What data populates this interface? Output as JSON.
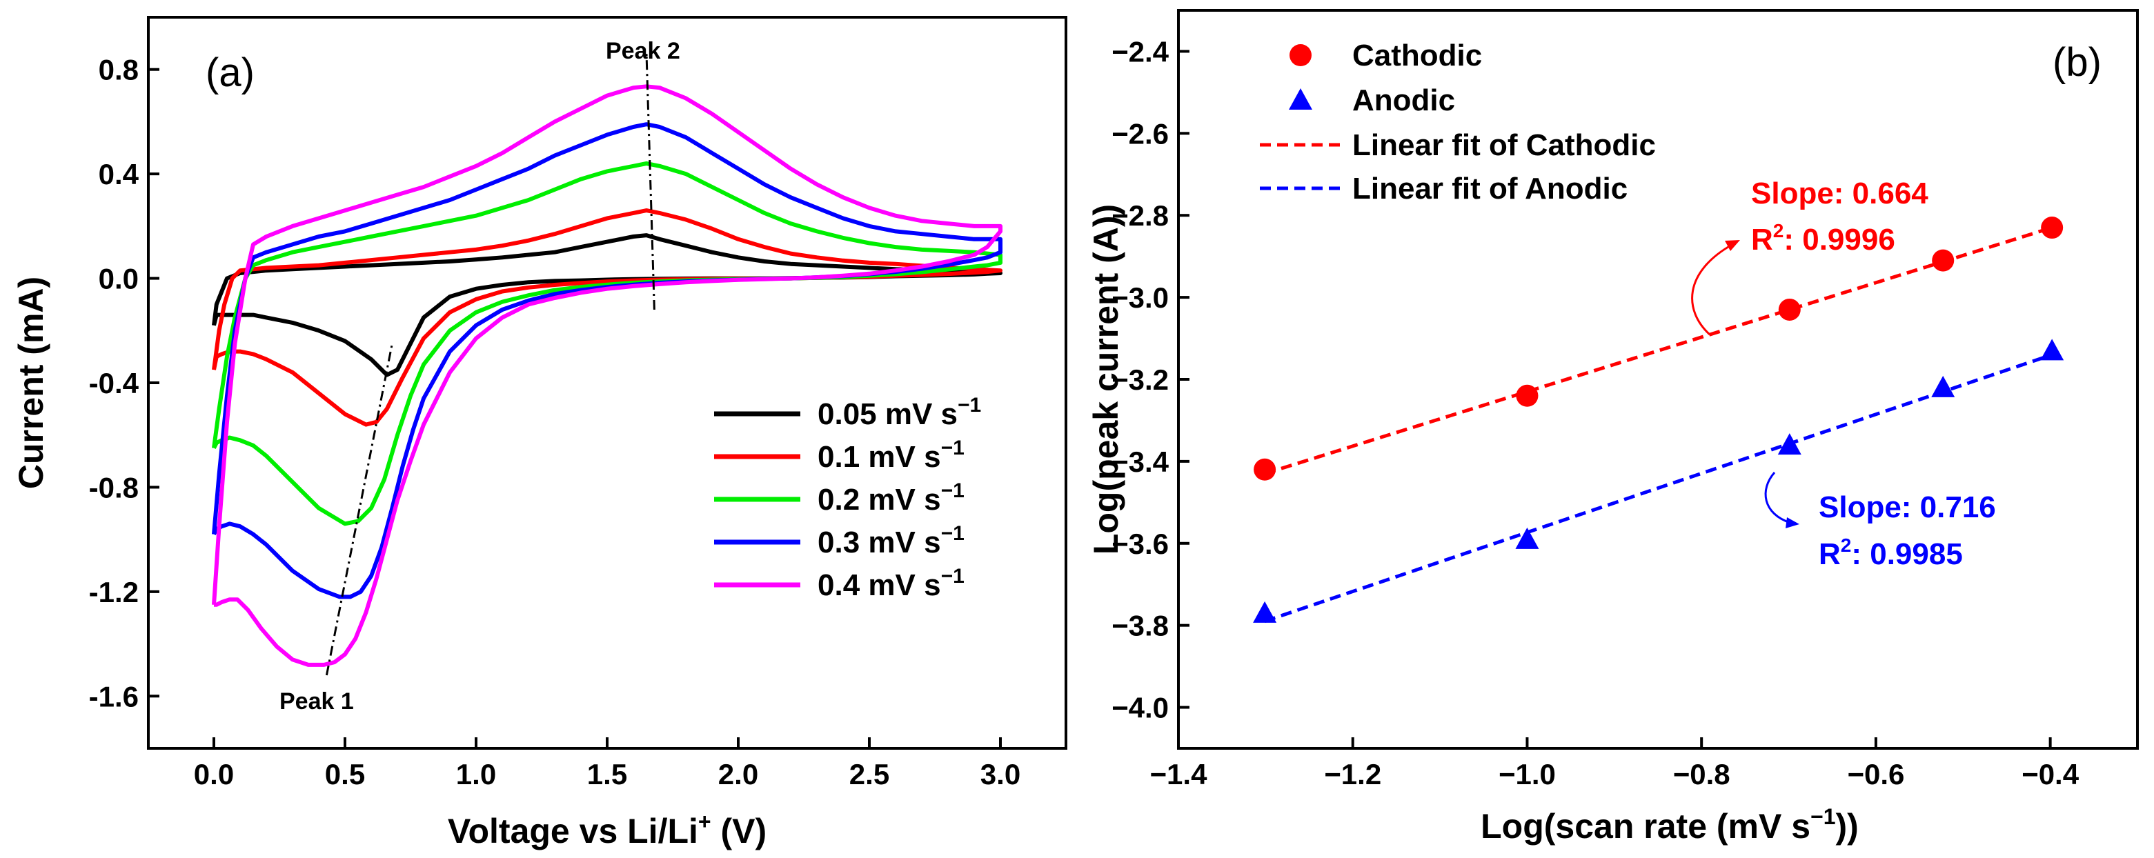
{
  "chart_data": [
    {
      "panel": "(a)",
      "type": "line",
      "xlabel": "Voltage vs Li/Li⁺ (V)",
      "ylabel": "Current (mA)",
      "xlim": [
        -0.25,
        3.25
      ],
      "ylim": [
        -1.8,
        1.0
      ],
      "xticks": [
        0.0,
        0.5,
        1.0,
        1.5,
        2.0,
        2.5,
        3.0
      ],
      "xtick_labels": [
        "0.0",
        "0.5",
        "1.0",
        "1.5",
        "2.0",
        "2.5",
        "3.0"
      ],
      "yticks": [
        -1.6,
        -1.2,
        -0.8,
        -0.4,
        0.0,
        0.4,
        0.8
      ],
      "ytick_labels": [
        "-1.6",
        "-1.2",
        "-0.8",
        "-0.4",
        "0.0",
        "0.4",
        "0.8"
      ],
      "annotations": {
        "peak1": "Peak 1",
        "peak2": "Peak 2"
      },
      "peak_lines": {
        "peak1": [
          [
            0.43,
            -1.52
          ],
          [
            0.68,
            -0.25
          ]
        ],
        "peak2": [
          [
            1.68,
            -0.12
          ],
          [
            1.65,
            0.86
          ]
        ]
      },
      "series": [
        {
          "name": "0.05 mV s⁻¹",
          "legend": "0.05 mV s",
          "color": "#000000",
          "x": [
            0.0,
            0.01,
            0.03,
            0.06,
            0.1,
            0.15,
            0.2,
            0.3,
            0.4,
            0.5,
            0.6,
            0.66,
            0.7,
            0.75,
            0.8,
            0.9,
            1.0,
            1.1,
            1.2,
            1.3,
            1.4,
            1.5,
            1.6,
            1.7,
            1.8,
            1.9,
            2.0,
            2.1,
            2.2,
            2.3,
            2.4,
            2.5,
            2.6,
            2.7,
            2.8,
            2.9,
            2.95,
            3.0,
            3.0,
            2.9,
            2.8,
            2.7,
            2.6,
            2.5,
            2.4,
            2.3,
            2.2,
            2.1,
            2.0,
            1.9,
            1.8,
            1.7,
            1.65,
            1.6,
            1.5,
            1.4,
            1.3,
            1.2,
            1.1,
            1.0,
            0.9,
            0.8,
            0.7,
            0.6,
            0.5,
            0.4,
            0.3,
            0.2,
            0.15,
            0.1,
            0.05,
            0.03,
            0.01,
            0.0
          ],
          "y": [
            -0.18,
            -0.14,
            -0.14,
            -0.14,
            -0.14,
            -0.14,
            -0.15,
            -0.17,
            -0.2,
            -0.24,
            -0.31,
            -0.37,
            -0.35,
            -0.25,
            -0.15,
            -0.07,
            -0.04,
            -0.025,
            -0.015,
            -0.01,
            -0.008,
            -0.005,
            -0.003,
            -0.002,
            -0.001,
            0.0,
            0.0,
            0.0,
            0.001,
            0.002,
            0.003,
            0.005,
            0.008,
            0.01,
            0.012,
            0.015,
            0.018,
            0.02,
            0.02,
            0.025,
            0.03,
            0.033,
            0.035,
            0.04,
            0.045,
            0.05,
            0.055,
            0.065,
            0.08,
            0.1,
            0.125,
            0.15,
            0.165,
            0.16,
            0.14,
            0.12,
            0.1,
            0.09,
            0.08,
            0.072,
            0.065,
            0.06,
            0.055,
            0.05,
            0.045,
            0.04,
            0.035,
            0.03,
            0.025,
            0.02,
            0.0,
            -0.05,
            -0.1,
            -0.18
          ]
        },
        {
          "name": "0.1 mV s⁻¹",
          "legend": "0.1 mV s",
          "color": "#ff0000",
          "x": [
            0.0,
            0.01,
            0.03,
            0.06,
            0.1,
            0.15,
            0.2,
            0.3,
            0.4,
            0.5,
            0.58,
            0.62,
            0.66,
            0.72,
            0.8,
            0.9,
            1.0,
            1.1,
            1.2,
            1.3,
            1.4,
            1.5,
            1.6,
            1.7,
            1.8,
            1.9,
            2.0,
            2.1,
            2.2,
            2.3,
            2.4,
            2.5,
            2.6,
            2.7,
            2.8,
            2.9,
            2.95,
            3.0,
            3.0,
            2.9,
            2.8,
            2.7,
            2.6,
            2.5,
            2.4,
            2.3,
            2.2,
            2.1,
            2.0,
            1.9,
            1.8,
            1.7,
            1.65,
            1.6,
            1.5,
            1.4,
            1.3,
            1.2,
            1.1,
            1.0,
            0.9,
            0.8,
            0.7,
            0.6,
            0.5,
            0.4,
            0.3,
            0.2,
            0.15,
            0.1,
            0.07,
            0.04,
            0.02,
            0.0
          ],
          "y": [
            -0.35,
            -0.3,
            -0.29,
            -0.28,
            -0.28,
            -0.29,
            -0.31,
            -0.36,
            -0.44,
            -0.52,
            -0.56,
            -0.55,
            -0.5,
            -0.38,
            -0.23,
            -0.13,
            -0.08,
            -0.05,
            -0.035,
            -0.025,
            -0.018,
            -0.012,
            -0.008,
            -0.005,
            -0.003,
            -0.002,
            -0.001,
            0.0,
            0.0,
            0.002,
            0.004,
            0.006,
            0.01,
            0.013,
            0.017,
            0.022,
            0.025,
            0.03,
            0.03,
            0.035,
            0.042,
            0.048,
            0.055,
            0.06,
            0.068,
            0.08,
            0.095,
            0.12,
            0.15,
            0.19,
            0.225,
            0.25,
            0.26,
            0.25,
            0.23,
            0.2,
            0.17,
            0.145,
            0.125,
            0.11,
            0.1,
            0.09,
            0.08,
            0.07,
            0.06,
            0.05,
            0.045,
            0.04,
            0.035,
            0.03,
            0.0,
            -0.1,
            -0.2,
            -0.35
          ]
        },
        {
          "name": "0.2 mV s⁻¹",
          "legend": "0.2 mV s",
          "color": "#00ee00",
          "x": [
            0.0,
            0.01,
            0.03,
            0.06,
            0.1,
            0.15,
            0.2,
            0.3,
            0.4,
            0.5,
            0.55,
            0.6,
            0.65,
            0.7,
            0.75,
            0.8,
            0.9,
            1.0,
            1.1,
            1.2,
            1.3,
            1.4,
            1.5,
            1.6,
            1.7,
            1.8,
            1.9,
            2.0,
            2.1,
            2.2,
            2.3,
            2.4,
            2.5,
            2.6,
            2.7,
            2.8,
            2.9,
            2.95,
            3.0,
            3.0,
            2.9,
            2.8,
            2.7,
            2.6,
            2.5,
            2.4,
            2.3,
            2.2,
            2.1,
            2.0,
            1.9,
            1.8,
            1.7,
            1.65,
            1.6,
            1.5,
            1.4,
            1.3,
            1.2,
            1.1,
            1.0,
            0.9,
            0.8,
            0.7,
            0.6,
            0.5,
            0.4,
            0.3,
            0.2,
            0.15,
            0.12,
            0.08,
            0.05,
            0.02,
            0.0
          ],
          "y": [
            -0.65,
            -0.63,
            -0.62,
            -0.61,
            -0.62,
            -0.64,
            -0.68,
            -0.78,
            -0.88,
            -0.94,
            -0.93,
            -0.88,
            -0.77,
            -0.6,
            -0.45,
            -0.33,
            -0.2,
            -0.13,
            -0.09,
            -0.065,
            -0.045,
            -0.033,
            -0.024,
            -0.017,
            -0.012,
            -0.008,
            -0.005,
            -0.003,
            -0.001,
            0.0,
            0.002,
            0.005,
            0.01,
            0.016,
            0.024,
            0.034,
            0.045,
            0.05,
            0.06,
            0.09,
            0.1,
            0.105,
            0.11,
            0.12,
            0.135,
            0.155,
            0.18,
            0.21,
            0.25,
            0.3,
            0.35,
            0.4,
            0.43,
            0.44,
            0.43,
            0.41,
            0.38,
            0.34,
            0.3,
            0.27,
            0.24,
            0.22,
            0.2,
            0.18,
            0.16,
            0.14,
            0.12,
            0.1,
            0.07,
            0.05,
            0.0,
            -0.15,
            -0.3,
            -0.5,
            -0.65
          ]
        },
        {
          "name": "0.3 mV s⁻¹",
          "legend": "0.3 mV s",
          "color": "#0000ff",
          "x": [
            0.0,
            0.01,
            0.03,
            0.06,
            0.1,
            0.15,
            0.2,
            0.3,
            0.4,
            0.48,
            0.52,
            0.56,
            0.6,
            0.64,
            0.68,
            0.72,
            0.76,
            0.8,
            0.9,
            1.0,
            1.1,
            1.2,
            1.3,
            1.4,
            1.5,
            1.6,
            1.7,
            1.8,
            1.9,
            2.0,
            2.1,
            2.2,
            2.3,
            2.4,
            2.5,
            2.6,
            2.7,
            2.8,
            2.9,
            2.95,
            3.0,
            3.0,
            2.9,
            2.8,
            2.7,
            2.6,
            2.5,
            2.4,
            2.3,
            2.2,
            2.1,
            2.0,
            1.9,
            1.8,
            1.7,
            1.65,
            1.6,
            1.5,
            1.4,
            1.3,
            1.2,
            1.1,
            1.0,
            0.9,
            0.8,
            0.7,
            0.6,
            0.5,
            0.4,
            0.3,
            0.2,
            0.15,
            0.12,
            0.08,
            0.05,
            0.02,
            0.0
          ],
          "y": [
            -0.98,
            -0.96,
            -0.95,
            -0.94,
            -0.95,
            -0.98,
            -1.02,
            -1.12,
            -1.19,
            -1.22,
            -1.22,
            -1.2,
            -1.14,
            -1.03,
            -0.88,
            -0.72,
            -0.58,
            -0.46,
            -0.28,
            -0.18,
            -0.12,
            -0.085,
            -0.06,
            -0.045,
            -0.033,
            -0.024,
            -0.017,
            -0.012,
            -0.008,
            -0.005,
            -0.002,
            0.0,
            0.004,
            0.009,
            0.016,
            0.025,
            0.037,
            0.052,
            0.07,
            0.08,
            0.1,
            0.15,
            0.15,
            0.16,
            0.17,
            0.18,
            0.2,
            0.23,
            0.27,
            0.31,
            0.36,
            0.42,
            0.48,
            0.54,
            0.58,
            0.59,
            0.58,
            0.55,
            0.51,
            0.47,
            0.42,
            0.38,
            0.34,
            0.3,
            0.27,
            0.24,
            0.21,
            0.18,
            0.16,
            0.13,
            0.1,
            0.08,
            0.0,
            -0.2,
            -0.45,
            -0.75,
            -0.98
          ]
        },
        {
          "name": "0.4 mV s⁻¹",
          "legend": "0.4 mV s",
          "color": "#ff00ff",
          "x": [
            0.0,
            0.01,
            0.03,
            0.06,
            0.09,
            0.13,
            0.18,
            0.24,
            0.3,
            0.36,
            0.42,
            0.46,
            0.5,
            0.54,
            0.58,
            0.62,
            0.66,
            0.7,
            0.75,
            0.8,
            0.9,
            1.0,
            1.1,
            1.2,
            1.3,
            1.4,
            1.5,
            1.6,
            1.7,
            1.8,
            1.9,
            2.0,
            2.1,
            2.2,
            2.3,
            2.4,
            2.5,
            2.6,
            2.7,
            2.8,
            2.9,
            2.95,
            3.0,
            3.0,
            2.9,
            2.8,
            2.7,
            2.6,
            2.5,
            2.4,
            2.3,
            2.2,
            2.1,
            2.0,
            1.9,
            1.8,
            1.7,
            1.65,
            1.6,
            1.5,
            1.4,
            1.3,
            1.2,
            1.1,
            1.0,
            0.9,
            0.8,
            0.7,
            0.6,
            0.5,
            0.4,
            0.3,
            0.2,
            0.15,
            0.12,
            0.08,
            0.05,
            0.02,
            0.0
          ],
          "y": [
            -1.25,
            -1.25,
            -1.24,
            -1.23,
            -1.23,
            -1.27,
            -1.34,
            -1.41,
            -1.46,
            -1.48,
            -1.48,
            -1.47,
            -1.44,
            -1.38,
            -1.28,
            -1.15,
            -1.0,
            -0.85,
            -0.7,
            -0.56,
            -0.36,
            -0.23,
            -0.15,
            -0.1,
            -0.075,
            -0.055,
            -0.04,
            -0.03,
            -0.022,
            -0.015,
            -0.01,
            -0.006,
            -0.003,
            0.0,
            0.004,
            0.01,
            0.018,
            0.03,
            0.045,
            0.065,
            0.09,
            0.12,
            0.18,
            0.2,
            0.2,
            0.21,
            0.22,
            0.24,
            0.27,
            0.31,
            0.36,
            0.42,
            0.49,
            0.56,
            0.63,
            0.69,
            0.73,
            0.735,
            0.73,
            0.7,
            0.65,
            0.6,
            0.54,
            0.48,
            0.43,
            0.39,
            0.35,
            0.32,
            0.29,
            0.26,
            0.23,
            0.2,
            0.16,
            0.13,
            0.0,
            -0.25,
            -0.55,
            -0.95,
            -1.25
          ]
        }
      ],
      "legend_position": "bottom-right"
    },
    {
      "panel": "(b)",
      "type": "scatter",
      "xlabel": "Log(scan rate (mV s⁻¹))",
      "ylabel": "Log(peak current (A))",
      "xlim": [
        -1.4,
        -0.3
      ],
      "ylim": [
        -4.1,
        -2.3
      ],
      "xticks": [
        -1.4,
        -1.2,
        -1.0,
        -0.8,
        -0.6,
        -0.4
      ],
      "xtick_labels": [
        "−1.4",
        "−1.2",
        "−1.0",
        "−0.8",
        "−0.6",
        "−0.4"
      ],
      "yticks": [
        -4.0,
        -3.8,
        -3.6,
        -3.4,
        -3.2,
        -3.0,
        -2.8,
        -2.6,
        -2.4
      ],
      "ytick_labels": [
        "−4.0",
        "−3.8",
        "−3.6",
        "−3.4",
        "−3.2",
        "−3.0",
        "−2.8",
        "−2.6",
        "−2.4"
      ],
      "series": [
        {
          "name": "Cathodic",
          "marker": "circle",
          "color": "#ff0000",
          "x": [
            -1.301,
            -1.0,
            -0.699,
            -0.523,
            -0.398
          ],
          "y": [
            -3.42,
            -3.24,
            -3.03,
            -2.91,
            -2.83
          ]
        },
        {
          "name": "Anodic",
          "marker": "triangle",
          "color": "#0000ff",
          "x": [
            -1.301,
            -1.0,
            -0.699,
            -0.523,
            -0.398
          ],
          "y": [
            -3.77,
            -3.59,
            -3.36,
            -3.22,
            -3.13
          ]
        }
      ],
      "fits": [
        {
          "name": "Linear fit of Cathodic",
          "color": "#ff0000",
          "x": [
            -1.301,
            -0.398
          ],
          "y": [
            -3.43,
            -2.83
          ]
        },
        {
          "name": "Linear fit of Anodic",
          "color": "#0000ff",
          "x": [
            -1.301,
            -0.398
          ],
          "y": [
            -3.79,
            -3.14
          ]
        }
      ],
      "annotations": {
        "cathodic_slope": "Slope: 0.664",
        "cathodic_r2_prefix": "R",
        "cathodic_r2_value": ": 0.9996",
        "anodic_slope": "Slope: 0.716",
        "anodic_r2_prefix": "R",
        "anodic_r2_value": ": 0.9985",
        "superscript_2": "2"
      },
      "legend_position": "top-left"
    }
  ],
  "labels": {
    "panel_a": "(a)",
    "panel_b": "(b)",
    "peak1": "Peak 1",
    "peak2": "Peak 2",
    "xlabel_a_main": "Voltage vs Li/Li",
    "xlabel_a_sup": "+",
    "xlabel_a_tail": " (V)",
    "ylabel_a": "Current (mA)",
    "xlabel_b_main": "Log(scan rate (mV s",
    "xlabel_b_sup": "−1",
    "xlabel_b_tail": "))",
    "ylabel_b": "Log(peak current (A))",
    "unit_sup": "−1",
    "legend_b": [
      "Cathodic",
      "Anodic",
      "Linear fit of Cathodic",
      "Linear fit of Anodic"
    ]
  }
}
